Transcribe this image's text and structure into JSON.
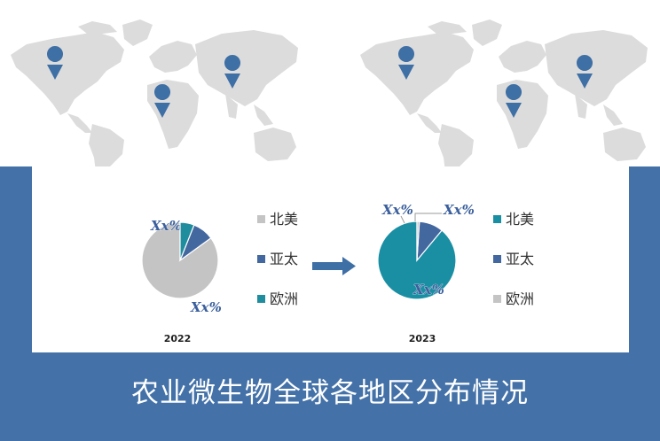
{
  "footer": {
    "title": "农业微生物全球各地区分布情况"
  },
  "colors": {
    "north_america_2022": "#c4c4c4",
    "asia_pacific": "#43679f",
    "europe": "#1f8d9e",
    "north_america_2023": "#1a8fa3",
    "map_land": "#dcdcdc",
    "pin": "#3e6fa5",
    "band": "#4472a8"
  },
  "chart_data": [
    {
      "type": "pie",
      "year_label": "2022",
      "slices": [
        {
          "name": "北美",
          "value": 85,
          "color": "#c4c4c4",
          "label": "Xx%"
        },
        {
          "name": "亚太",
          "value": 9,
          "color": "#43679f",
          "label": "Xx%"
        },
        {
          "name": "欧洲",
          "value": 6,
          "color": "#1f8d9e",
          "label": ""
        }
      ],
      "legend": [
        "北美",
        "亚太",
        "欧洲"
      ],
      "legend_colors": [
        "#c4c4c4",
        "#43679f",
        "#1f8d9e"
      ]
    },
    {
      "type": "pie",
      "year_label": "2023",
      "slices": [
        {
          "name": "北美",
          "value": 89,
          "color": "#1a8fa3",
          "label": "Xx%"
        },
        {
          "name": "亚太",
          "value": 10,
          "color": "#43679f",
          "label": "Xx%"
        },
        {
          "name": "欧洲",
          "value": 1,
          "color": "#c4c4c4",
          "label": "Xx%"
        }
      ],
      "legend": [
        "北美",
        "亚太",
        "欧洲"
      ],
      "legend_colors": [
        "#1a8fa3",
        "#43679f",
        "#c4c4c4"
      ]
    }
  ]
}
